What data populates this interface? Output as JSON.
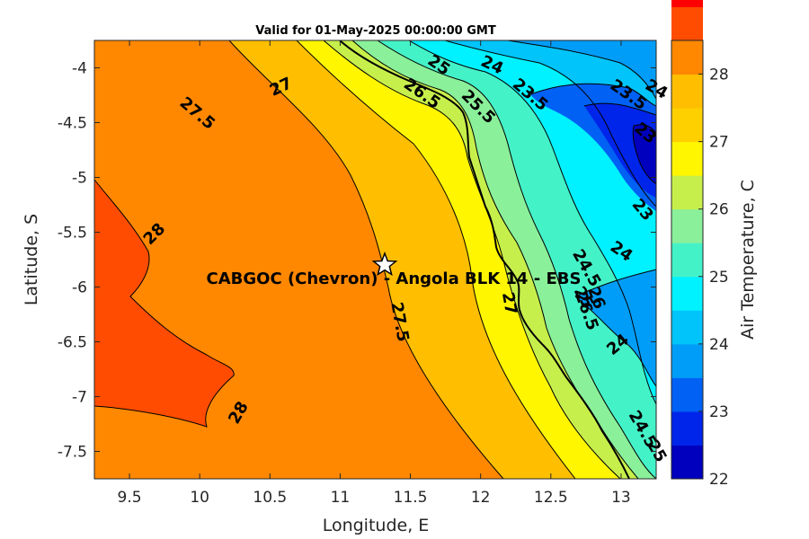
{
  "chart_data": {
    "type": "heatmap",
    "subtype": "filled-contour",
    "title": "Valid for 01-May-2025 00:00:00 GMT",
    "xlabel": "Longitude, E",
    "ylabel": "Latitude, S",
    "xlim": [
      9.25,
      13.25
    ],
    "ylim": [
      -7.75,
      -3.75
    ],
    "x_ticks": [
      "9.5",
      "10",
      "10.5",
      "11",
      "11.5",
      "12",
      "12.5",
      "13"
    ],
    "x_tick_values": [
      9.5,
      10,
      10.5,
      11,
      11.5,
      12,
      12.5,
      13
    ],
    "y_ticks": [
      "-4",
      "-4.5",
      "-5",
      "-5.5",
      "-6",
      "-6.5",
      "-7",
      "-7.5"
    ],
    "y_tick_values": [
      -4,
      -4.5,
      -5,
      -5.5,
      -6,
      -6.5,
      -7,
      -7.5
    ],
    "colorbar": {
      "label": "Air Temperature, C",
      "range": [
        22,
        28.5
      ],
      "step": 0.5,
      "ticks": [
        "22",
        "23",
        "24",
        "25",
        "26",
        "27",
        "28"
      ],
      "tick_values": [
        22,
        23,
        24,
        25,
        26,
        27,
        28
      ],
      "colors": [
        "#0000be",
        "#0025ea",
        "#0061f4",
        "#009df8",
        "#00c4fa",
        "#00f1ff",
        "#44f2c8",
        "#8af09a",
        "#c7ef4b",
        "#fff600",
        "#ffd000",
        "#ffbf00",
        "#ff8800",
        "#ff4c00",
        "#ff0000"
      ]
    },
    "contour_labels": [
      "27.5",
      "27",
      "25",
      "24",
      "26.5",
      "25.5",
      "23.5",
      "23.5",
      "24",
      "23",
      "23",
      "28",
      "24",
      "24.5",
      "25",
      "26",
      "26.5",
      "27",
      "27.5",
      "24",
      "28",
      "24.5",
      "25"
    ],
    "contour_label_positions": [
      [
        9.98,
        -4.42
      ],
      [
        10.58,
        -4.18
      ],
      [
        11.7,
        -3.98
      ],
      [
        12.08,
        -3.98
      ],
      [
        11.58,
        -4.24
      ],
      [
        11.98,
        -4.36
      ],
      [
        12.35,
        -4.25
      ],
      [
        13.05,
        -4.25
      ],
      [
        13.25,
        -4.2
      ],
      [
        13.17,
        -4.6
      ],
      [
        13.15,
        -5.3
      ],
      [
        9.68,
        -5.52
      ],
      [
        13.0,
        -5.68
      ],
      [
        12.75,
        -5.83
      ],
      [
        12.73,
        -6.1
      ],
      [
        12.82,
        -6.1
      ],
      [
        12.75,
        -6.22
      ],
      [
        12.2,
        -6.15
      ],
      [
        11.42,
        -6.32
      ],
      [
        12.98,
        -6.53
      ],
      [
        10.28,
        -7.15
      ],
      [
        13.15,
        -7.3
      ],
      [
        13.25,
        -7.5
      ]
    ],
    "marker": {
      "label": "CABGOC (Chevron) - Angola BLK 14 - EBS",
      "lon": 11.33,
      "lat": -5.8
    }
  }
}
